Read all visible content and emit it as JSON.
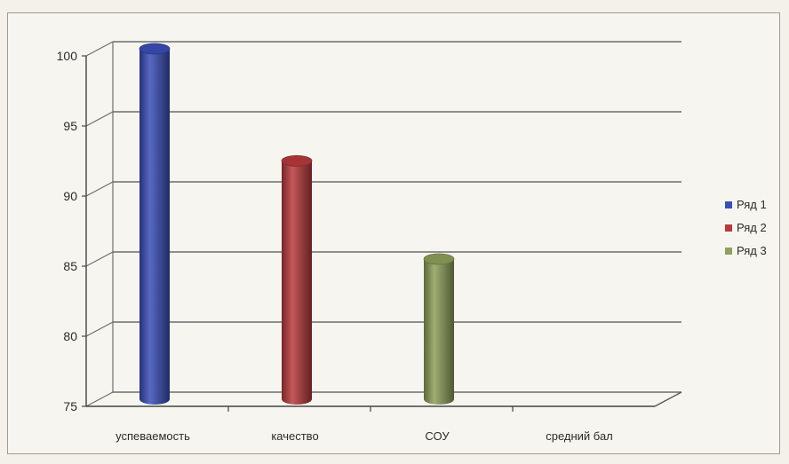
{
  "chart_data": {
    "type": "bar",
    "style": "3d-cylinder",
    "title": "",
    "xlabel": "",
    "ylabel": "",
    "categories": [
      "успеваемость",
      "качество",
      "СОУ",
      "средний бал"
    ],
    "series": [
      {
        "name": "Ряд 1",
        "color": "#3a4fb8",
        "values": [
          100,
          null,
          null,
          null
        ]
      },
      {
        "name": "Ряд 2",
        "color": "#b83a3d",
        "values": [
          null,
          92,
          null,
          null
        ]
      },
      {
        "name": "Ряд 3",
        "color": "#8ea05a",
        "values": [
          null,
          null,
          85,
          null
        ]
      }
    ],
    "ylim": [
      75,
      100
    ],
    "yticks": [
      75,
      80,
      85,
      90,
      95,
      100
    ],
    "grid": true,
    "legend": "right"
  }
}
